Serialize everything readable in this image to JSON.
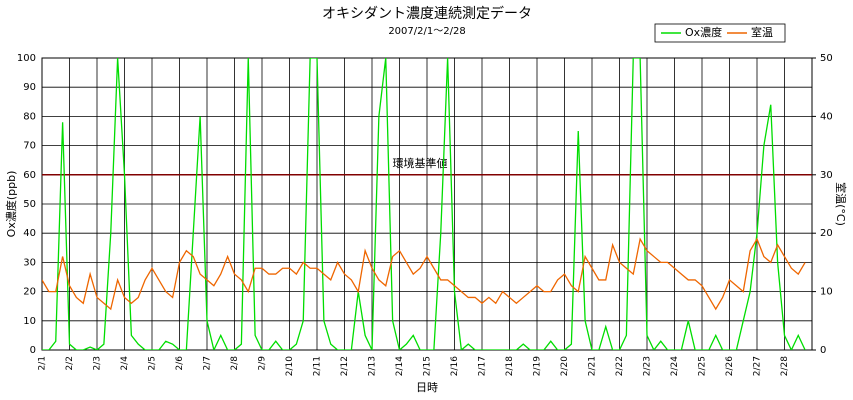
{
  "chart_data": {
    "type": "line",
    "title": "オキシダント濃度連続測定データ",
    "subtitle": "2007/2/1～2/28",
    "x_label": "日時",
    "y_label": "Ox濃度(ppb)",
    "y2_label": "室温(°C)",
    "x": [
      1,
      1.25,
      1.5,
      1.75,
      2,
      2.25,
      2.5,
      2.75,
      3,
      3.25,
      3.5,
      3.75,
      4,
      4.25,
      4.5,
      4.75,
      5,
      5.25,
      5.5,
      5.75,
      6,
      6.25,
      6.5,
      6.75,
      7,
      7.25,
      7.5,
      7.75,
      8,
      8.25,
      8.5,
      8.75,
      9,
      9.25,
      9.5,
      9.75,
      10,
      10.25,
      10.5,
      10.75,
      11,
      11.25,
      11.5,
      11.75,
      12,
      12.25,
      12.5,
      12.75,
      13,
      13.25,
      13.5,
      13.75,
      14,
      14.25,
      14.5,
      14.75,
      15,
      15.25,
      15.5,
      15.75,
      16,
      16.25,
      16.5,
      16.75,
      17,
      17.25,
      17.5,
      17.75,
      18,
      18.25,
      18.5,
      18.75,
      19,
      19.25,
      19.5,
      19.75,
      20,
      20.25,
      20.5,
      20.75,
      21,
      21.25,
      21.5,
      21.75,
      22,
      22.25,
      22.5,
      22.75,
      23,
      23.25,
      23.5,
      23.75,
      24,
      24.25,
      24.5,
      24.75,
      25,
      25.25,
      25.5,
      25.75,
      26,
      26.25,
      26.5,
      26.75,
      27,
      27.25,
      27.5,
      27.75,
      28,
      28.25,
      28.5,
      28.75
    ],
    "series": [
      {
        "name": "Ox濃度",
        "color": "#00dd00",
        "values": [
          0,
          0,
          3,
          78,
          2,
          0,
          0,
          1,
          0,
          2,
          40,
          100,
          60,
          5,
          2,
          0,
          0,
          0,
          3,
          2,
          0,
          0,
          40,
          80,
          10,
          0,
          5,
          0,
          0,
          2,
          100,
          5,
          0,
          0,
          3,
          0,
          0,
          2,
          10,
          100,
          100,
          10,
          2,
          0,
          0,
          0,
          20,
          5,
          0,
          80,
          100,
          10,
          0,
          2,
          5,
          0,
          0,
          0,
          40,
          100,
          20,
          0,
          2,
          0,
          0,
          0,
          0,
          0,
          0,
          0,
          2,
          0,
          0,
          0,
          3,
          0,
          0,
          2,
          75,
          10,
          0,
          0,
          8,
          0,
          0,
          5,
          100,
          100,
          5,
          0,
          3,
          0,
          0,
          0,
          10,
          0,
          0,
          0,
          5,
          0,
          0,
          0,
          10,
          20,
          40,
          70,
          84,
          30,
          5,
          0,
          5,
          0
        ]
      },
      {
        "name": "室温",
        "color": "#ee6600",
        "axis": "y2",
        "values": [
          12,
          10,
          10,
          16,
          11,
          9,
          8,
          13,
          9,
          8,
          7,
          12,
          9,
          8,
          9,
          12,
          14,
          12,
          10,
          9,
          15,
          17,
          16,
          13,
          12,
          11,
          13,
          16,
          13,
          12,
          10,
          14,
          14,
          13,
          13,
          14,
          14,
          13,
          15,
          14,
          14,
          13,
          12,
          15,
          13,
          12,
          10,
          17,
          14,
          12,
          11,
          16,
          17,
          15,
          13,
          14,
          16,
          14,
          12,
          12,
          11,
          10,
          9,
          9,
          8,
          9,
          8,
          10,
          9,
          8,
          9,
          10,
          11,
          10,
          10,
          12,
          13,
          11,
          10,
          16,
          14,
          12,
          12,
          18,
          15,
          14,
          13,
          19,
          17,
          16,
          15,
          15,
          14,
          13,
          12,
          12,
          11,
          9,
          7,
          9,
          12,
          11,
          10,
          17,
          19,
          16,
          15,
          18,
          16,
          14,
          13,
          15
        ]
      }
    ],
    "xlim": [
      1,
      29
    ],
    "xticks": [
      {
        "value": 1,
        "label": "2/1"
      },
      {
        "value": 2,
        "label": "2/2"
      },
      {
        "value": 3,
        "label": "2/3"
      },
      {
        "value": 4,
        "label": "2/4"
      },
      {
        "value": 5,
        "label": "2/5"
      },
      {
        "value": 6,
        "label": "2/6"
      },
      {
        "value": 7,
        "label": "2/7"
      },
      {
        "value": 8,
        "label": "2/8"
      },
      {
        "value": 9,
        "label": "2/9"
      },
      {
        "value": 10,
        "label": "2/10"
      },
      {
        "value": 11,
        "label": "2/11"
      },
      {
        "value": 12,
        "label": "2/12"
      },
      {
        "value": 13,
        "label": "2/13"
      },
      {
        "value": 14,
        "label": "2/14"
      },
      {
        "value": 15,
        "label": "2/15"
      },
      {
        "value": 16,
        "label": "2/16"
      },
      {
        "value": 17,
        "label": "2/17"
      },
      {
        "value": 18,
        "label": "2/18"
      },
      {
        "value": 19,
        "label": "2/19"
      },
      {
        "value": 20,
        "label": "2/20"
      },
      {
        "value": 21,
        "label": "2/21"
      },
      {
        "value": 22,
        "label": "2/22"
      },
      {
        "value": 23,
        "label": "2/23"
      },
      {
        "value": 24,
        "label": "2/24"
      },
      {
        "value": 25,
        "label": "2/25"
      },
      {
        "value": 26,
        "label": "2/26"
      },
      {
        "value": 27,
        "label": "2/27"
      },
      {
        "value": 28,
        "label": "2/28"
      }
    ],
    "ylim": [
      0,
      100
    ],
    "yticks": [
      0,
      10,
      20,
      30,
      40,
      50,
      60,
      70,
      80,
      90,
      100
    ],
    "y2lim": [
      0,
      50
    ],
    "y2ticks": [
      0,
      10,
      20,
      30,
      40,
      50
    ],
    "threshold": {
      "value": 60,
      "label": "環境基準値",
      "color": "#800000"
    },
    "grid": true,
    "legend": "top-right"
  }
}
